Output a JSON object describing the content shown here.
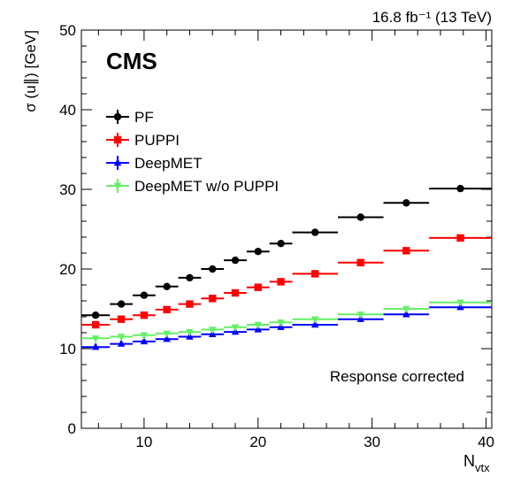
{
  "chart_data": {
    "type": "scatter",
    "title": "",
    "lumi_label": "16.8 fb⁻¹ (13 TeV)",
    "experiment_label": "CMS",
    "annotation": "Response corrected",
    "xlabel": "N",
    "xlabel_sub": "vtx",
    "ylabel": "σ (u∥) [GeV]",
    "xlim": [
      4.5,
      40.5
    ],
    "ylim": [
      0,
      50
    ],
    "x_ticks": [
      10,
      20,
      30,
      40
    ],
    "y_ticks": [
      0,
      10,
      20,
      30,
      40,
      50
    ],
    "grid": false,
    "legend_position": "top-left",
    "series": [
      {
        "name": "PF",
        "color": "#000000",
        "marker": "circle",
        "bins": [
          [
            4.5,
            7
          ],
          [
            7,
            9
          ],
          [
            9,
            11
          ],
          [
            11,
            13
          ],
          [
            13,
            15
          ],
          [
            15,
            17
          ],
          [
            17,
            19
          ],
          [
            19,
            21
          ],
          [
            21,
            23
          ],
          [
            23,
            27
          ],
          [
            27,
            31
          ],
          [
            31,
            35
          ],
          [
            35,
            40.5
          ]
        ],
        "values": [
          14.2,
          15.6,
          16.7,
          17.8,
          18.9,
          20.0,
          21.1,
          22.2,
          23.2,
          24.6,
          26.5,
          28.3,
          30.1
        ]
      },
      {
        "name": "PUPPI",
        "color": "#ff0000",
        "marker": "square",
        "bins": [
          [
            4.5,
            7
          ],
          [
            7,
            9
          ],
          [
            9,
            11
          ],
          [
            11,
            13
          ],
          [
            13,
            15
          ],
          [
            15,
            17
          ],
          [
            17,
            19
          ],
          [
            19,
            21
          ],
          [
            21,
            23
          ],
          [
            23,
            27
          ],
          [
            27,
            31
          ],
          [
            31,
            35
          ],
          [
            35,
            40.5
          ]
        ],
        "values": [
          13.0,
          13.7,
          14.2,
          14.9,
          15.6,
          16.3,
          17.0,
          17.7,
          18.4,
          19.4,
          20.8,
          22.3,
          23.9
        ]
      },
      {
        "name": "DeepMET",
        "color": "#0000ff",
        "marker": "triangle-up",
        "bins": [
          [
            4.5,
            7
          ],
          [
            7,
            9
          ],
          [
            9,
            11
          ],
          [
            11,
            13
          ],
          [
            13,
            15
          ],
          [
            15,
            17
          ],
          [
            17,
            19
          ],
          [
            19,
            21
          ],
          [
            21,
            23
          ],
          [
            23,
            27
          ],
          [
            27,
            31
          ],
          [
            31,
            35
          ],
          [
            35,
            40.5
          ]
        ],
        "values": [
          10.2,
          10.6,
          10.9,
          11.2,
          11.5,
          11.8,
          12.1,
          12.4,
          12.7,
          13.0,
          13.7,
          14.3,
          15.2
        ]
      },
      {
        "name": "DeepMET w/o PUPPI",
        "color": "#66ee66",
        "marker": "triangle-down",
        "bins": [
          [
            4.5,
            7
          ],
          [
            7,
            9
          ],
          [
            9,
            11
          ],
          [
            11,
            13
          ],
          [
            13,
            15
          ],
          [
            15,
            17
          ],
          [
            17,
            19
          ],
          [
            19,
            21
          ],
          [
            21,
            23
          ],
          [
            23,
            27
          ],
          [
            27,
            31
          ],
          [
            31,
            35
          ],
          [
            35,
            40.5
          ]
        ],
        "values": [
          11.3,
          11.5,
          11.7,
          11.9,
          12.1,
          12.4,
          12.7,
          13.0,
          13.3,
          13.7,
          14.3,
          15.0,
          15.8
        ]
      }
    ]
  }
}
